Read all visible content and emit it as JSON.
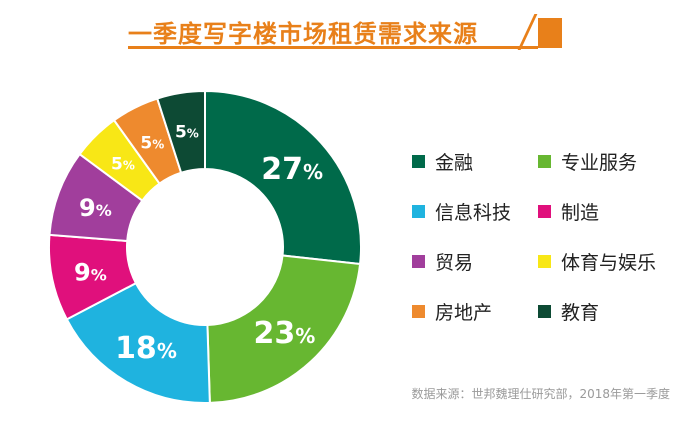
{
  "chart_data": {
    "type": "pie",
    "title": "一季度写字楼市场租赁需求来源",
    "categories": [
      "金融",
      "专业服务",
      "信息科技",
      "制造",
      "贸易",
      "体育与娱乐",
      "房地产",
      "教育"
    ],
    "values": [
      27,
      23,
      18,
      9,
      9,
      5,
      5,
      5
    ],
    "labels": [
      "27%",
      "23%",
      "18%",
      "9%",
      "9%",
      "5%",
      "5%",
      "5%"
    ],
    "colors": [
      "#006a4a",
      "#67b731",
      "#1fb3df",
      "#e0107c",
      "#a13e9c",
      "#f8e716",
      "#ee8a2e",
      "#0d4a34"
    ],
    "legend_position": "right",
    "source": "数据来源：世邦魏理仕研究部，2018年第一季度"
  }
}
